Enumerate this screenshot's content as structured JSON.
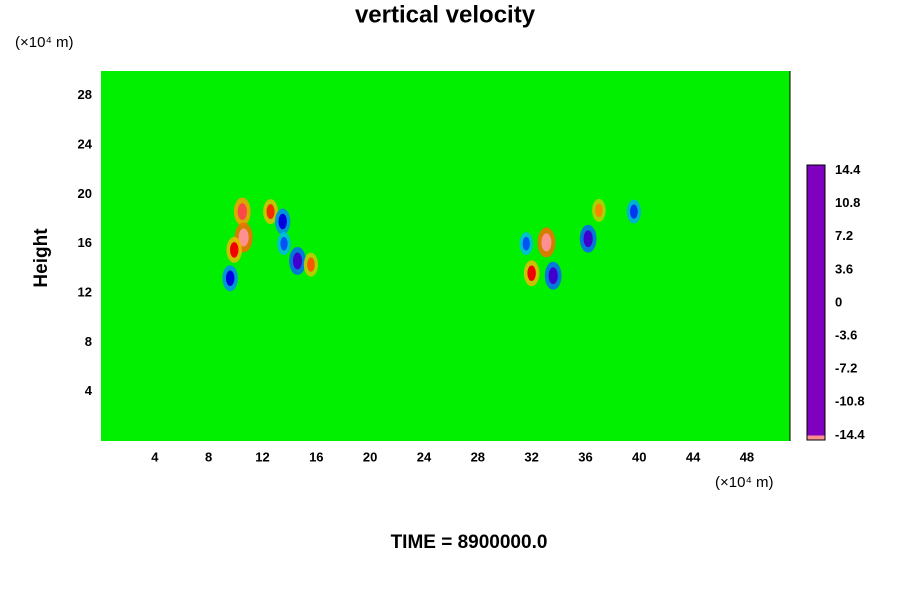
{
  "chart_data": {
    "type": "contour",
    "title": "vertical velocity",
    "y_label": "Height",
    "y_unit": "(×10⁴ m)",
    "x_unit": "(×10⁴ m)",
    "footer": "TIME = 8900000.0",
    "background_color": "#00f000",
    "xlim": [
      0,
      51.2
    ],
    "xticks": [
      4,
      8,
      12,
      16,
      20,
      24,
      28,
      32,
      36,
      40,
      44,
      48
    ],
    "ylim": [
      0,
      30
    ],
    "yticks": [
      4,
      8,
      12,
      16,
      20,
      24,
      28
    ],
    "x": [
      10.5,
      10.6,
      9.9,
      12.6,
      13.5,
      14.6,
      15.6,
      9.6,
      13.6,
      33.1,
      32.0,
      33.6,
      36.2,
      39.6,
      37.0,
      31.6
    ],
    "y": [
      18.6,
      16.5,
      15.5,
      18.6,
      17.8,
      14.6,
      14.3,
      13.2,
      16.0,
      16.1,
      13.6,
      13.4,
      16.4,
      18.6,
      18.7,
      16.0
    ],
    "values": [
      12.6,
      14.4,
      10.8,
      9.9,
      -10.8,
      -12.6,
      9.0,
      -10.8,
      -8.1,
      14.4,
      10.8,
      -12.6,
      -12.6,
      -9.0,
      8.1,
      -8.1
    ],
    "clim": [
      -14.9,
      15
    ],
    "cticks": [
      14.4,
      10.8,
      7.2,
      3.6,
      0,
      -3.6,
      -7.2,
      -10.8,
      -14.4
    ],
    "colormap": [
      {
        "value": -14.4,
        "color": "#8000c0"
      },
      {
        "value": -10.8,
        "color": "#0000e0"
      },
      {
        "value": -7.2,
        "color": "#0070ff"
      },
      {
        "value": -3.6,
        "color": "#00e0e0"
      },
      {
        "value": 0,
        "color": "#00f000"
      },
      {
        "value": 3.6,
        "color": "#a0e000"
      },
      {
        "value": 7.2,
        "color": "#ffb000"
      },
      {
        "value": 10.8,
        "color": "#f00000"
      },
      {
        "value": 14.4,
        "color": "#ff9090"
      }
    ]
  }
}
